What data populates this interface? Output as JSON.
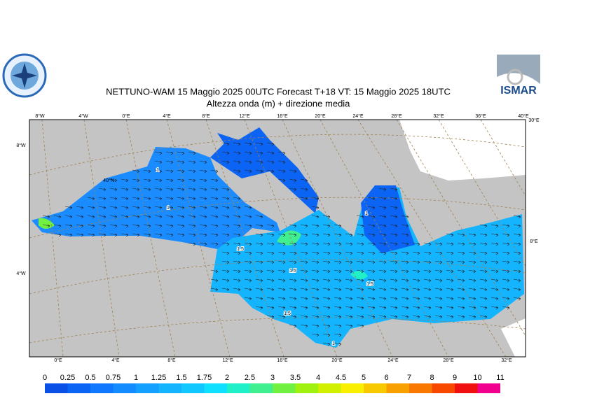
{
  "header": {
    "title": "NETTUNO-WAM  15   Maggio  2025 00UTC Forecast T+18 VT: 15   Maggio  2025 18UTC",
    "subtitle": "Altezza onda (m) + direzione media",
    "logo_text": "ISMAR"
  },
  "map": {
    "top_labels": [
      "8°W",
      "4°W",
      "0°E",
      "4°E",
      "8°E",
      "12°E",
      "16°E",
      "20°E",
      "24°E",
      "28°E",
      "32°E",
      "36°E",
      "40°E"
    ],
    "bottom_labels": [
      "0°E",
      "4°E",
      "8°E",
      "12°E",
      "16°E",
      "20°E",
      "24°E",
      "28°E",
      "32°E"
    ],
    "left_labels": [
      "8°W",
      "4°W"
    ],
    "right_labels": [
      "30°E",
      "8°E"
    ],
    "inner_labels": [
      "40°N"
    ],
    "contour_labels": [
      "1",
      "1",
      "1.5",
      "1.5",
      "1.5",
      "1.5",
      "1",
      "1"
    ]
  },
  "legend": {
    "levels": [
      "0",
      "0.25",
      "0.5",
      "0.75",
      "1",
      "1.25",
      "1.5",
      "1.75",
      "2",
      "2.5",
      "3",
      "3.5",
      "4",
      "4.5",
      "5",
      "6",
      "7",
      "8",
      "9",
      "10",
      "11"
    ],
    "colors": [
      "#0a50e6",
      "#0c64f4",
      "#1078ff",
      "#148cff",
      "#14a0ff",
      "#14b4ff",
      "#10c8ff",
      "#10e0ff",
      "#20f0c8",
      "#40f090",
      "#70f040",
      "#a0f010",
      "#d0f000",
      "#f8f000",
      "#f8c800",
      "#f8a000",
      "#f87800",
      "#f84800",
      "#f01010",
      "#f0008c"
    ]
  }
}
